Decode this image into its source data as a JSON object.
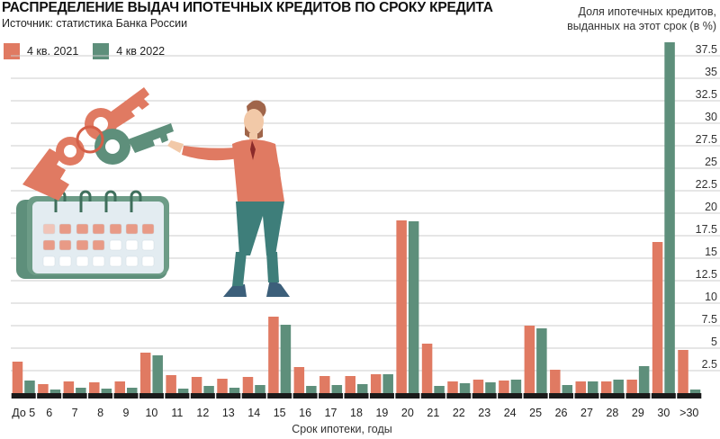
{
  "chart_data": {
    "type": "bar",
    "title": "РАСПРЕДЕЛЕНИЕ ВЫДАЧ ИПОТЕЧНЫХ КРЕДИТОВ ПО СРОКУ КРЕДИТА",
    "subtitle": "Источник: статистика Банка России",
    "ylabel": "Доля ипотечных кредитов, выданных на этот срок (в %)",
    "ylabel_line1": "Доля ипотечных кредитов,",
    "ylabel_line2": "выданных на этот срок (в %)",
    "xlabel": "Срок ипотеки, годы",
    "ylim": [
      0,
      39
    ],
    "yticks": [
      "2.5",
      "5",
      "7.5",
      "10",
      "12.5",
      "15",
      "17.5",
      "20",
      "22.5",
      "25",
      "27.5",
      "30",
      "32.5",
      "35",
      "37.5"
    ],
    "categories": [
      "До 5",
      "6",
      "7",
      "8",
      "9",
      "10",
      "11",
      "12",
      "13",
      "14",
      "15",
      "16",
      "17",
      "18",
      "19",
      "20",
      "21",
      "22",
      "23",
      "24",
      "25",
      "26",
      "27",
      "28",
      "29",
      "30",
      ">30"
    ],
    "series": [
      {
        "name": "4 кв. 2021",
        "color": "#e07a62",
        "values": [
          3.5,
          1.0,
          1.3,
          1.2,
          1.3,
          4.5,
          2.0,
          1.8,
          1.6,
          1.8,
          8.5,
          2.9,
          1.9,
          1.9,
          2.1,
          19.2,
          5.5,
          1.3,
          1.5,
          1.4,
          7.5,
          2.6,
          1.3,
          1.3,
          1.5,
          16.8,
          4.8
        ]
      },
      {
        "name": "4 кв 2022",
        "color": "#5e8f7b",
        "values": [
          1.4,
          0.4,
          0.6,
          0.5,
          0.6,
          4.2,
          0.5,
          0.8,
          0.6,
          0.9,
          7.6,
          0.8,
          0.9,
          1.0,
          2.1,
          19.1,
          0.8,
          1.1,
          1.2,
          1.5,
          7.2,
          0.9,
          1.3,
          1.5,
          3.0,
          39.0,
          0.4
        ]
      }
    ],
    "grid": true,
    "legend_position": "top-left"
  },
  "colors": {
    "series_2021": "#e07a62",
    "series_2022": "#5e8f7b",
    "baseline": "#1a1a1a",
    "grid": "#cccccc"
  },
  "illustration": {
    "description_icon": "man-with-keys-and-calendar-illustration"
  }
}
